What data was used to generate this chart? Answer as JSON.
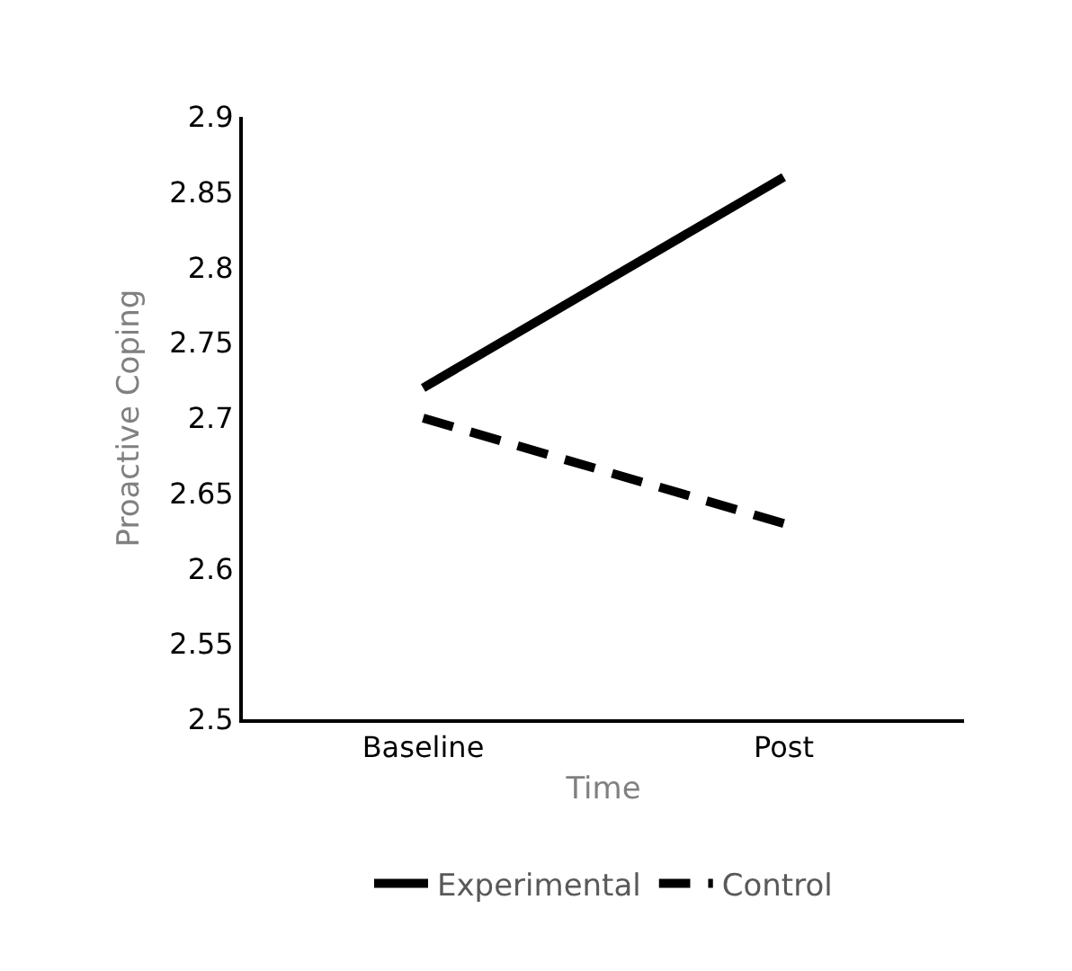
{
  "chart_data": {
    "type": "line",
    "xlabel": "Time",
    "ylabel": "Proactive Coping",
    "categories": [
      "Baseline",
      "Post"
    ],
    "series": [
      {
        "name": "Experimental",
        "color": "#000000",
        "values": [
          2.72,
          2.86
        ],
        "line_style": "solid"
      },
      {
        "name": "Control",
        "color": "#000000",
        "values": [
          2.7,
          2.63
        ],
        "line_style": "dashed"
      }
    ],
    "ylim": [
      2.5,
      2.9
    ],
    "yticks": [
      2.5,
      2.55,
      2.6,
      2.65,
      2.7,
      2.75,
      2.8,
      2.85,
      2.9
    ],
    "grid": false,
    "legend": "bottom",
    "marker": "none"
  }
}
